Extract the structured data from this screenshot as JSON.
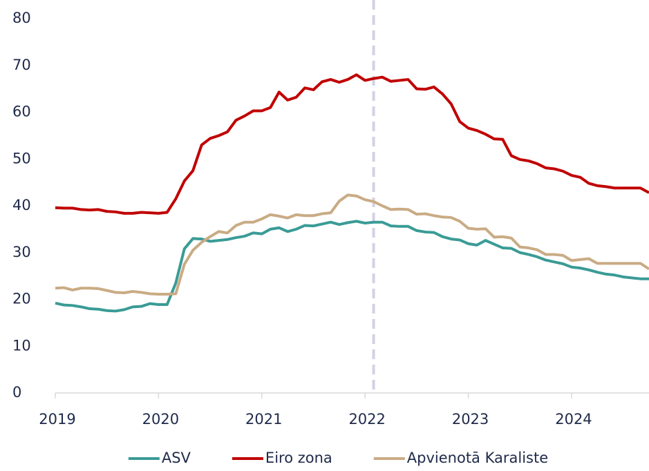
{
  "chart_data": {
    "type": "line",
    "x": [
      2019,
      2019.083,
      2019.167,
      2019.25,
      2019.333,
      2019.417,
      2019.5,
      2019.583,
      2019.667,
      2019.75,
      2019.833,
      2019.917,
      2020,
      2020.083,
      2020.167,
      2020.25,
      2020.333,
      2020.417,
      2020.5,
      2020.583,
      2020.667,
      2020.75,
      2020.833,
      2020.917,
      2021,
      2021.083,
      2021.167,
      2021.25,
      2021.333,
      2021.417,
      2021.5,
      2021.583,
      2021.667,
      2021.75,
      2021.833,
      2021.917,
      2022,
      2022.083,
      2022.167,
      2022.25,
      2022.333,
      2022.417,
      2022.5,
      2022.583,
      2022.667,
      2022.75,
      2022.833,
      2022.917,
      2023,
      2023.083,
      2023.167,
      2023.25,
      2023.333,
      2023.417,
      2023.5,
      2023.583,
      2023.667,
      2023.75,
      2023.833,
      2023.917,
      2024,
      2024.083,
      2024.167,
      2024.25,
      2024.333,
      2024.417,
      2024.5,
      2024.583,
      2024.667,
      2024.75
    ],
    "series": [
      {
        "name": "ASV",
        "color": "#3a9b96",
        "values": [
          19.2,
          18.8,
          18.7,
          18.4,
          18.0,
          17.9,
          17.6,
          17.5,
          17.8,
          18.4,
          18.5,
          19.1,
          18.9,
          18.9,
          23.5,
          30.8,
          33.0,
          32.9,
          32.4,
          32.6,
          32.8,
          33.2,
          33.5,
          34.2,
          34.0,
          35.0,
          35.3,
          34.5,
          35.0,
          35.8,
          35.7,
          36.1,
          36.5,
          36.0,
          36.4,
          36.7,
          36.3,
          36.5,
          36.5,
          35.7,
          35.6,
          35.6,
          34.7,
          34.4,
          34.3,
          33.4,
          32.9,
          32.7,
          31.9,
          31.6,
          32.6,
          31.8,
          31.0,
          30.9,
          30.0,
          29.6,
          29.1,
          28.4,
          28.0,
          27.6,
          26.9,
          26.7,
          26.3,
          25.8,
          25.4,
          25.2,
          24.8,
          24.6,
          24.4,
          24.4
        ]
      },
      {
        "name": "Eiro zona",
        "color": "#c00000",
        "values": [
          39.6,
          39.5,
          39.5,
          39.2,
          39.1,
          39.2,
          38.8,
          38.7,
          38.4,
          38.4,
          38.6,
          38.5,
          38.4,
          38.6,
          41.5,
          45.3,
          47.5,
          53.0,
          54.4,
          55.0,
          55.8,
          58.3,
          59.2,
          60.3,
          60.3,
          61.0,
          64.3,
          62.6,
          63.2,
          65.2,
          64.8,
          66.5,
          67.0,
          66.4,
          67.0,
          68.0,
          66.8,
          67.2,
          67.5,
          66.6,
          66.8,
          67.0,
          65.0,
          64.9,
          65.4,
          63.9,
          61.8,
          58.0,
          56.6,
          56.1,
          55.3,
          54.3,
          54.2,
          50.7,
          49.9,
          49.6,
          49.0,
          48.1,
          47.9,
          47.4,
          46.5,
          46.1,
          44.8,
          44.3,
          44.1,
          43.8,
          43.8,
          43.8,
          43.8,
          42.8
        ]
      },
      {
        "name": "Apvienotā Karaliste",
        "color": "#c9ab84",
        "values": [
          22.4,
          22.5,
          22.0,
          22.4,
          22.4,
          22.3,
          21.9,
          21.5,
          21.4,
          21.7,
          21.5,
          21.2,
          21.1,
          21.1,
          21.2,
          27.5,
          30.5,
          32.2,
          33.4,
          34.5,
          34.2,
          35.8,
          36.5,
          36.5,
          37.2,
          38.1,
          37.8,
          37.4,
          38.1,
          37.9,
          37.9,
          38.3,
          38.5,
          41.0,
          42.3,
          42.1,
          41.3,
          40.9,
          40.0,
          39.2,
          39.3,
          39.2,
          38.2,
          38.3,
          37.9,
          37.6,
          37.5,
          36.7,
          35.2,
          35.0,
          35.1,
          33.3,
          33.4,
          33.1,
          31.2,
          31.0,
          30.6,
          29.6,
          29.6,
          29.4,
          28.3,
          28.5,
          28.7,
          27.7,
          27.7,
          27.7,
          27.7,
          27.7,
          27.7,
          26.5
        ]
      }
    ],
    "xlim": [
      2019,
      2024.75
    ],
    "xticks": [
      2019,
      2020,
      2021,
      2022,
      2023,
      2024
    ],
    "ylim": [
      0,
      80
    ],
    "yticks": [
      0,
      10,
      20,
      30,
      40,
      50,
      60,
      70,
      80
    ],
    "vline": 2022.083,
    "vline_color": "#d4d1e3",
    "legend": "bottom",
    "grid": false
  }
}
